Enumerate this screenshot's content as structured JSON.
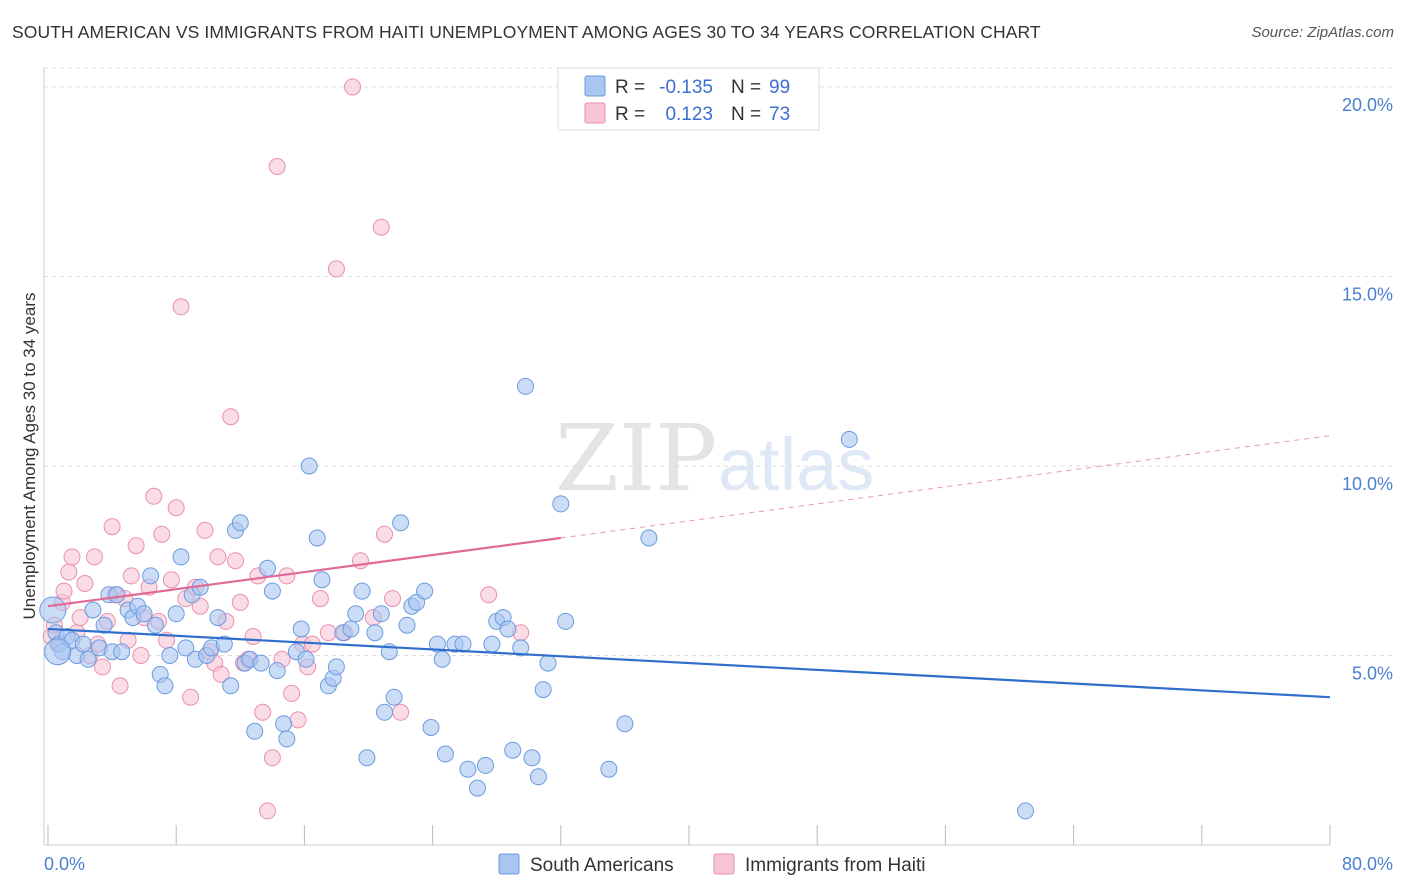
{
  "header": {
    "title": "SOUTH AMERICAN VS IMMIGRANTS FROM HAITI UNEMPLOYMENT AMONG AGES 30 TO 34 YEARS CORRELATION CHART",
    "source": "Source: ZipAtlas.com"
  },
  "watermark": {
    "zip": "ZIP",
    "atlas": "atlas"
  },
  "legend": {
    "rows": [
      {
        "r_label": "R =",
        "r_value": "-0.135",
        "n_label": "N =",
        "n_value": "99",
        "color": "#6c9be0"
      },
      {
        "r_label": "R =",
        "r_value": "0.123",
        "n_label": "N =",
        "n_value": "73",
        "color": "#f19bb8"
      }
    ]
  },
  "colors": {
    "blue_fill": "#a9c6f0",
    "blue_stroke": "#6c9be0",
    "blue_line": "#2f6fcc",
    "pink_fill": "#f7c5d5",
    "pink_stroke": "#ea8fb0",
    "pink_line": "#e06a96",
    "tick": "#4a7fd1",
    "grid": "#dddddd"
  },
  "chart_data": {
    "type": "scatter",
    "title": "SOUTH AMERICAN VS IMMIGRANTS FROM HAITI UNEMPLOYMENT AMONG AGES 30 TO 34 YEARS CORRELATION CHART",
    "xlabel": "",
    "ylabel": "Unemployment Among Ages 30 to 34 years",
    "xlim": [
      0,
      80
    ],
    "ylim": [
      0,
      20.5
    ],
    "x_tick_labels": [
      "0.0%",
      "80.0%"
    ],
    "y_ticks": [
      5,
      10,
      15,
      20
    ],
    "y_tick_labels": [
      "5.0%",
      "10.0%",
      "15.0%",
      "20.0%"
    ],
    "grid": "horizontal dashed",
    "legend_position": "top-center",
    "series": [
      {
        "name": "South Americans",
        "trend": {
          "x0": 0,
          "y0": 5.7,
          "x1": 80,
          "y1": 3.9,
          "solid_until": 80
        },
        "points": [
          [
            0.3,
            6.2
          ],
          [
            0.5,
            5.6
          ],
          [
            0.7,
            5.3
          ],
          [
            0.9,
            5.1
          ],
          [
            1.2,
            5.5
          ],
          [
            1.5,
            5.4
          ],
          [
            1.8,
            5.0
          ],
          [
            2.2,
            5.3
          ],
          [
            2.5,
            4.9
          ],
          [
            2.8,
            6.2
          ],
          [
            3.2,
            5.2
          ],
          [
            3.5,
            5.8
          ],
          [
            3.8,
            6.6
          ],
          [
            4.0,
            5.1
          ],
          [
            4.3,
            6.6
          ],
          [
            4.6,
            5.1
          ],
          [
            5.0,
            6.2
          ],
          [
            5.3,
            6.0
          ],
          [
            5.6,
            6.3
          ],
          [
            6.0,
            6.1
          ],
          [
            6.4,
            7.1
          ],
          [
            6.7,
            5.8
          ],
          [
            7.0,
            4.5
          ],
          [
            7.3,
            4.2
          ],
          [
            7.6,
            5.0
          ],
          [
            8.0,
            6.1
          ],
          [
            8.3,
            7.6
          ],
          [
            8.6,
            5.2
          ],
          [
            9.0,
            6.6
          ],
          [
            9.2,
            4.9
          ],
          [
            9.5,
            6.8
          ],
          [
            9.9,
            5.0
          ],
          [
            10.2,
            5.2
          ],
          [
            10.6,
            6.0
          ],
          [
            11.0,
            5.3
          ],
          [
            11.4,
            4.2
          ],
          [
            11.7,
            8.3
          ],
          [
            12.0,
            8.5
          ],
          [
            12.3,
            4.8
          ],
          [
            12.6,
            4.9
          ],
          [
            12.9,
            3.0
          ],
          [
            13.3,
            4.8
          ],
          [
            13.7,
            7.3
          ],
          [
            14.0,
            6.7
          ],
          [
            14.3,
            4.6
          ],
          [
            14.7,
            3.2
          ],
          [
            14.9,
            2.8
          ],
          [
            15.5,
            5.1
          ],
          [
            15.8,
            5.7
          ],
          [
            16.1,
            4.9
          ],
          [
            16.3,
            10.0
          ],
          [
            16.8,
            8.1
          ],
          [
            17.1,
            7.0
          ],
          [
            17.5,
            4.2
          ],
          [
            17.8,
            4.4
          ],
          [
            18.0,
            4.7
          ],
          [
            18.4,
            5.6
          ],
          [
            18.9,
            5.7
          ],
          [
            19.2,
            6.1
          ],
          [
            19.6,
            6.7
          ],
          [
            19.9,
            2.3
          ],
          [
            20.4,
            5.6
          ],
          [
            20.8,
            6.1
          ],
          [
            21.0,
            3.5
          ],
          [
            21.3,
            5.1
          ],
          [
            21.6,
            3.9
          ],
          [
            22.0,
            8.5
          ],
          [
            22.4,
            5.8
          ],
          [
            22.7,
            6.3
          ],
          [
            23.0,
            6.4
          ],
          [
            23.5,
            6.7
          ],
          [
            23.9,
            3.1
          ],
          [
            24.3,
            5.3
          ],
          [
            24.6,
            4.9
          ],
          [
            24.8,
            2.4
          ],
          [
            25.4,
            5.3
          ],
          [
            25.9,
            5.3
          ],
          [
            26.2,
            2.0
          ],
          [
            26.8,
            1.5
          ],
          [
            27.3,
            2.1
          ],
          [
            27.7,
            5.3
          ],
          [
            28.0,
            5.9
          ],
          [
            28.4,
            6.0
          ],
          [
            28.7,
            5.7
          ],
          [
            29.0,
            2.5
          ],
          [
            29.5,
            5.2
          ],
          [
            29.8,
            12.1
          ],
          [
            30.2,
            2.3
          ],
          [
            30.6,
            1.8
          ],
          [
            30.9,
            4.1
          ],
          [
            31.2,
            4.8
          ],
          [
            32.0,
            9.0
          ],
          [
            32.3,
            5.9
          ],
          [
            35.0,
            2.0
          ],
          [
            36.0,
            3.2
          ],
          [
            37.5,
            8.1
          ],
          [
            50.0,
            10.7
          ],
          [
            61.0,
            0.9
          ],
          [
            0.6,
            5.1
          ]
        ]
      },
      {
        "name": "Immigrants from Haiti",
        "trend": {
          "x0": 0,
          "y0": 6.3,
          "x1": 80,
          "y1": 10.8,
          "solid_until": 32
        },
        "points": [
          [
            0.2,
            5.5
          ],
          [
            0.4,
            5.8
          ],
          [
            0.6,
            5.3
          ],
          [
            0.9,
            6.4
          ],
          [
            1.0,
            6.7
          ],
          [
            1.3,
            7.2
          ],
          [
            1.5,
            7.6
          ],
          [
            1.8,
            5.6
          ],
          [
            2.0,
            6.0
          ],
          [
            2.3,
            6.9
          ],
          [
            2.6,
            5.0
          ],
          [
            2.9,
            7.6
          ],
          [
            3.1,
            5.3
          ],
          [
            3.4,
            4.7
          ],
          [
            3.7,
            5.9
          ],
          [
            4.0,
            8.4
          ],
          [
            4.2,
            6.6
          ],
          [
            4.5,
            4.2
          ],
          [
            4.8,
            6.5
          ],
          [
            5.0,
            5.4
          ],
          [
            5.2,
            7.1
          ],
          [
            5.5,
            7.9
          ],
          [
            5.8,
            5.0
          ],
          [
            6.0,
            6.0
          ],
          [
            6.3,
            6.8
          ],
          [
            6.6,
            9.2
          ],
          [
            6.9,
            5.9
          ],
          [
            7.1,
            8.2
          ],
          [
            7.4,
            5.4
          ],
          [
            7.7,
            7.0
          ],
          [
            8.0,
            8.9
          ],
          [
            8.3,
            14.2
          ],
          [
            8.6,
            6.5
          ],
          [
            8.9,
            3.9
          ],
          [
            9.2,
            6.8
          ],
          [
            9.5,
            6.3
          ],
          [
            9.8,
            8.3
          ],
          [
            10.1,
            5.1
          ],
          [
            10.4,
            4.8
          ],
          [
            10.6,
            7.6
          ],
          [
            10.8,
            4.5
          ],
          [
            11.1,
            5.9
          ],
          [
            11.4,
            11.3
          ],
          [
            11.7,
            7.5
          ],
          [
            12.0,
            6.4
          ],
          [
            12.2,
            4.8
          ],
          [
            12.5,
            4.9
          ],
          [
            12.8,
            5.5
          ],
          [
            13.1,
            7.1
          ],
          [
            13.4,
            3.5
          ],
          [
            13.7,
            0.9
          ],
          [
            14.0,
            2.3
          ],
          [
            14.3,
            17.9
          ],
          [
            14.6,
            4.9
          ],
          [
            14.9,
            7.1
          ],
          [
            15.2,
            4.0
          ],
          [
            15.6,
            3.3
          ],
          [
            15.9,
            5.3
          ],
          [
            16.2,
            4.7
          ],
          [
            16.5,
            5.3
          ],
          [
            17.0,
            6.5
          ],
          [
            17.5,
            5.6
          ],
          [
            18.0,
            15.2
          ],
          [
            18.5,
            5.6
          ],
          [
            19.0,
            20.0
          ],
          [
            19.5,
            7.5
          ],
          [
            20.3,
            6.0
          ],
          [
            20.8,
            16.3
          ],
          [
            21.0,
            8.2
          ],
          [
            21.5,
            6.5
          ],
          [
            22.0,
            3.5
          ],
          [
            27.5,
            6.6
          ],
          [
            29.5,
            5.6
          ]
        ]
      }
    ]
  },
  "bottom_legend": {
    "items": [
      {
        "label": "South Americans",
        "color": "#a9c6f0"
      },
      {
        "label": "Immigrants from Haiti",
        "color": "#f7c5d5"
      }
    ]
  }
}
